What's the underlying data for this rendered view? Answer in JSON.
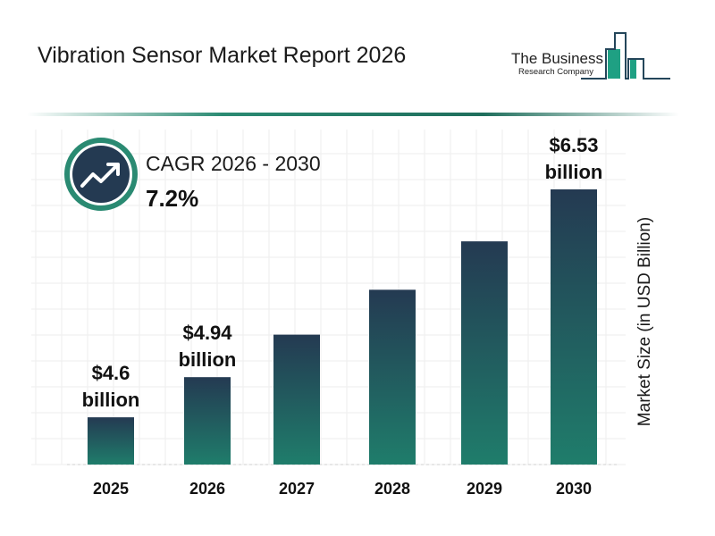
{
  "title": "Vibration Sensor Market Report 2026",
  "logo": {
    "line1": "The Business",
    "line2": "Research Company"
  },
  "cagr": {
    "label": "CAGR 2026 - 2030",
    "value": "7.2%",
    "icon": "trending-up-icon"
  },
  "colors": {
    "bar_top": "#243a52",
    "bar_bottom": "#1f7d6b",
    "accent": "#2a8a72",
    "icon_bg": "#243a52"
  },
  "chart_data": {
    "type": "bar",
    "categories": [
      "2025",
      "2026",
      "2027",
      "2028",
      "2029",
      "2030"
    ],
    "values": [
      4.6,
      4.94,
      5.3,
      5.68,
      6.09,
      6.53
    ],
    "data_labels": [
      {
        "index": 0,
        "line1": "$4.6",
        "line2": "billion"
      },
      {
        "index": 1,
        "line1": "$4.94",
        "line2": "billion"
      },
      {
        "index": 5,
        "line1": "$6.53",
        "line2": "billion"
      }
    ],
    "ylabel": "Market Size (in USD Billion)",
    "xlabel": "",
    "grid": true
  }
}
